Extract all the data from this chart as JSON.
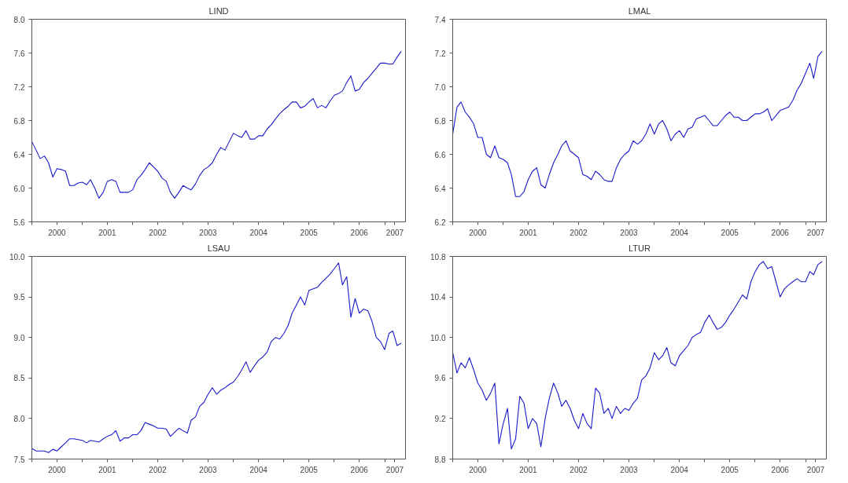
{
  "chart_data": [
    {
      "type": "line",
      "title": "LIND",
      "x": [
        "2000-01",
        "2000-02",
        "2000-03",
        "2000-04",
        "2000-05",
        "2000-06",
        "2000-07",
        "2000-08",
        "2000-09",
        "2000-10",
        "2000-11",
        "2000-12",
        "2001-01",
        "2001-02",
        "2001-03",
        "2001-04",
        "2001-05",
        "2001-06",
        "2001-07",
        "2001-08",
        "2001-09",
        "2001-10",
        "2001-11",
        "2001-12",
        "2002-01",
        "2002-02",
        "2002-03",
        "2002-04",
        "2002-05",
        "2002-06",
        "2002-07",
        "2002-08",
        "2002-09",
        "2002-10",
        "2002-11",
        "2002-12",
        "2003-01",
        "2003-02",
        "2003-03",
        "2003-04",
        "2003-05",
        "2003-06",
        "2003-07",
        "2003-08",
        "2003-09",
        "2003-10",
        "2003-11",
        "2003-12",
        "2004-01",
        "2004-02",
        "2004-03",
        "2004-04",
        "2004-05",
        "2004-06",
        "2004-07",
        "2004-08",
        "2004-09",
        "2004-10",
        "2004-11",
        "2004-12",
        "2005-01",
        "2005-02",
        "2005-03",
        "2005-04",
        "2005-05",
        "2005-06",
        "2005-07",
        "2005-08",
        "2005-09",
        "2005-10",
        "2005-11",
        "2005-12",
        "2006-01",
        "2006-02",
        "2006-03",
        "2006-04",
        "2006-05",
        "2006-06",
        "2006-07",
        "2006-08",
        "2006-09",
        "2006-10",
        "2006-11",
        "2006-12",
        "2007-01",
        "2007-02",
        "2007-03",
        "2007-04",
        "2007-05"
      ],
      "series": [
        {
          "color": "#1a1acc",
          "values": [
            6.55,
            6.45,
            6.35,
            6.38,
            6.3,
            6.13,
            6.23,
            6.22,
            6.2,
            6.03,
            6.03,
            6.06,
            6.07,
            6.04,
            6.1,
            6.0,
            5.88,
            5.95,
            6.08,
            6.1,
            6.08,
            5.95,
            5.95,
            5.95,
            5.98,
            6.1,
            6.15,
            6.22,
            6.3,
            6.25,
            6.2,
            6.12,
            6.08,
            5.95,
            5.88,
            5.95,
            6.03,
            6.0,
            5.98,
            6.05,
            6.15,
            6.22,
            6.25,
            6.3,
            6.4,
            6.48,
            6.45,
            6.55,
            6.65,
            6.62,
            6.6,
            6.68,
            6.58,
            6.58,
            6.62,
            6.62,
            6.7,
            6.75,
            6.82,
            6.88,
            6.93,
            6.97,
            7.02,
            7.02,
            6.95,
            6.97,
            7.02,
            7.06,
            6.95,
            6.98,
            6.95,
            7.03,
            7.1,
            7.12,
            7.15,
            7.25,
            7.33,
            7.15,
            7.17,
            7.25,
            7.3,
            7.36,
            7.42,
            7.48,
            7.48,
            7.47,
            7.47,
            7.55,
            7.62
          ]
        }
      ],
      "xlim": [
        "2000-01-01",
        "2007-06-01"
      ],
      "xticks": [
        {
          "value": "2000-01-01",
          "label": null
        },
        {
          "value": "2000-07-01",
          "label": "2000"
        },
        {
          "value": "2001-01-01",
          "label": null
        },
        {
          "value": "2001-07-01",
          "label": "2001"
        },
        {
          "value": "2002-01-01",
          "label": null
        },
        {
          "value": "2002-07-01",
          "label": "2002"
        },
        {
          "value": "2003-01-01",
          "label": null
        },
        {
          "value": "2003-07-01",
          "label": "2003"
        },
        {
          "value": "2004-01-01",
          "label": null
        },
        {
          "value": "2004-07-01",
          "label": "2004"
        },
        {
          "value": "2005-01-01",
          "label": null
        },
        {
          "value": "2005-07-01",
          "label": "2005"
        },
        {
          "value": "2006-01-01",
          "label": null
        },
        {
          "value": "2006-07-01",
          "label": "2006"
        },
        {
          "value": "2007-01-01",
          "label": null
        },
        {
          "value": "2007-03-16",
          "label": "2007"
        }
      ],
      "ylim": [
        5.6,
        8.0
      ],
      "yticks": [
        {
          "value": 5.6,
          "label": "5.6"
        },
        {
          "value": 6.0,
          "label": "6.0"
        },
        {
          "value": 6.4,
          "label": "6.4"
        },
        {
          "value": 6.8,
          "label": "6.8"
        },
        {
          "value": 7.2,
          "label": "7.2"
        },
        {
          "value": 7.6,
          "label": "7.6"
        },
        {
          "value": 8.0,
          "label": "8.0"
        }
      ],
      "grid": false,
      "line_style": "solid",
      "marker": "none"
    },
    {
      "type": "line",
      "title": "LMAL",
      "x": [
        "2000-01",
        "2000-02",
        "2000-03",
        "2000-04",
        "2000-05",
        "2000-06",
        "2000-07",
        "2000-08",
        "2000-09",
        "2000-10",
        "2000-11",
        "2000-12",
        "2001-01",
        "2001-02",
        "2001-03",
        "2001-04",
        "2001-05",
        "2001-06",
        "2001-07",
        "2001-08",
        "2001-09",
        "2001-10",
        "2001-11",
        "2001-12",
        "2002-01",
        "2002-02",
        "2002-03",
        "2002-04",
        "2002-05",
        "2002-06",
        "2002-07",
        "2002-08",
        "2002-09",
        "2002-10",
        "2002-11",
        "2002-12",
        "2003-01",
        "2003-02",
        "2003-03",
        "2003-04",
        "2003-05",
        "2003-06",
        "2003-07",
        "2003-08",
        "2003-09",
        "2003-10",
        "2003-11",
        "2003-12",
        "2004-01",
        "2004-02",
        "2004-03",
        "2004-04",
        "2004-05",
        "2004-06",
        "2004-07",
        "2004-08",
        "2004-09",
        "2004-10",
        "2004-11",
        "2004-12",
        "2005-01",
        "2005-02",
        "2005-03",
        "2005-04",
        "2005-05",
        "2005-06",
        "2005-07",
        "2005-08",
        "2005-09",
        "2005-10",
        "2005-11",
        "2005-12",
        "2006-01",
        "2006-02",
        "2006-03",
        "2006-04",
        "2006-05",
        "2006-06",
        "2006-07",
        "2006-08",
        "2006-09",
        "2006-10",
        "2006-11",
        "2006-12",
        "2007-01",
        "2007-02",
        "2007-03",
        "2007-04",
        "2007-05"
      ],
      "series": [
        {
          "color": "#1a1acc",
          "values": [
            6.72,
            6.88,
            6.91,
            6.85,
            6.82,
            6.78,
            6.7,
            6.7,
            6.6,
            6.58,
            6.65,
            6.58,
            6.57,
            6.55,
            6.48,
            6.35,
            6.35,
            6.38,
            6.45,
            6.5,
            6.52,
            6.42,
            6.4,
            6.48,
            6.55,
            6.6,
            6.65,
            6.68,
            6.62,
            6.6,
            6.58,
            6.48,
            6.47,
            6.45,
            6.5,
            6.48,
            6.45,
            6.44,
            6.44,
            6.52,
            6.57,
            6.6,
            6.62,
            6.68,
            6.66,
            6.68,
            6.72,
            6.78,
            6.72,
            6.78,
            6.8,
            6.75,
            6.68,
            6.72,
            6.74,
            6.7,
            6.75,
            6.76,
            6.81,
            6.82,
            6.83,
            6.8,
            6.77,
            6.77,
            6.8,
            6.83,
            6.85,
            6.82,
            6.82,
            6.8,
            6.8,
            6.82,
            6.84,
            6.84,
            6.85,
            6.87,
            6.8,
            6.83,
            6.86,
            6.87,
            6.88,
            6.92,
            6.98,
            7.02,
            7.08,
            7.14,
            7.05,
            7.18,
            7.21
          ]
        }
      ],
      "xlim": [
        "2000-01-01",
        "2007-06-01"
      ],
      "xticks": [
        {
          "value": "2000-01-01",
          "label": null
        },
        {
          "value": "2000-07-01",
          "label": "2000"
        },
        {
          "value": "2001-01-01",
          "label": null
        },
        {
          "value": "2001-07-01",
          "label": "2001"
        },
        {
          "value": "2002-01-01",
          "label": null
        },
        {
          "value": "2002-07-01",
          "label": "2002"
        },
        {
          "value": "2003-01-01",
          "label": null
        },
        {
          "value": "2003-07-01",
          "label": "2003"
        },
        {
          "value": "2004-01-01",
          "label": null
        },
        {
          "value": "2004-07-01",
          "label": "2004"
        },
        {
          "value": "2005-01-01",
          "label": null
        },
        {
          "value": "2005-07-01",
          "label": "2005"
        },
        {
          "value": "2006-01-01",
          "label": null
        },
        {
          "value": "2006-07-01",
          "label": "2006"
        },
        {
          "value": "2007-01-01",
          "label": null
        },
        {
          "value": "2007-03-16",
          "label": "2007"
        }
      ],
      "ylim": [
        6.2,
        7.4
      ],
      "yticks": [
        {
          "value": 6.2,
          "label": "6.2"
        },
        {
          "value": 6.4,
          "label": "6.4"
        },
        {
          "value": 6.6,
          "label": "6.6"
        },
        {
          "value": 6.8,
          "label": "6.8"
        },
        {
          "value": 7.0,
          "label": "7.0"
        },
        {
          "value": 7.2,
          "label": "7.2"
        },
        {
          "value": 7.4,
          "label": "7.4"
        }
      ],
      "grid": false,
      "line_style": "solid",
      "marker": "none"
    },
    {
      "type": "line",
      "title": "LSAU",
      "x": [
        "2000-01",
        "2000-02",
        "2000-03",
        "2000-04",
        "2000-05",
        "2000-06",
        "2000-07",
        "2000-08",
        "2000-09",
        "2000-10",
        "2000-11",
        "2000-12",
        "2001-01",
        "2001-02",
        "2001-03",
        "2001-04",
        "2001-05",
        "2001-06",
        "2001-07",
        "2001-08",
        "2001-09",
        "2001-10",
        "2001-11",
        "2001-12",
        "2002-01",
        "2002-02",
        "2002-03",
        "2002-04",
        "2002-05",
        "2002-06",
        "2002-07",
        "2002-08",
        "2002-09",
        "2002-10",
        "2002-11",
        "2002-12",
        "2003-01",
        "2003-02",
        "2003-03",
        "2003-04",
        "2003-05",
        "2003-06",
        "2003-07",
        "2003-08",
        "2003-09",
        "2003-10",
        "2003-11",
        "2003-12",
        "2004-01",
        "2004-02",
        "2004-03",
        "2004-04",
        "2004-05",
        "2004-06",
        "2004-07",
        "2004-08",
        "2004-09",
        "2004-10",
        "2004-11",
        "2004-12",
        "2005-01",
        "2005-02",
        "2005-03",
        "2005-04",
        "2005-05",
        "2005-06",
        "2005-07",
        "2005-08",
        "2005-09",
        "2005-10",
        "2005-11",
        "2005-12",
        "2006-01",
        "2006-02",
        "2006-03",
        "2006-04",
        "2006-05",
        "2006-06",
        "2006-07",
        "2006-08",
        "2006-09",
        "2006-10",
        "2006-11",
        "2006-12",
        "2007-01",
        "2007-02",
        "2007-03",
        "2007-04",
        "2007-05"
      ],
      "series": [
        {
          "color": "#1a1acc",
          "values": [
            7.63,
            7.6,
            7.6,
            7.6,
            7.58,
            7.62,
            7.6,
            7.65,
            7.7,
            7.75,
            7.75,
            7.74,
            7.73,
            7.7,
            7.73,
            7.72,
            7.71,
            7.75,
            7.78,
            7.8,
            7.85,
            7.72,
            7.76,
            7.76,
            7.8,
            7.8,
            7.85,
            7.95,
            7.93,
            7.91,
            7.88,
            7.88,
            7.87,
            7.78,
            7.83,
            7.88,
            7.85,
            7.82,
            7.98,
            8.02,
            8.15,
            8.2,
            8.3,
            8.38,
            8.3,
            8.35,
            8.38,
            8.42,
            8.45,
            8.52,
            8.6,
            8.7,
            8.57,
            8.65,
            8.72,
            8.76,
            8.82,
            8.95,
            9.0,
            8.98,
            9.05,
            9.15,
            9.3,
            9.4,
            9.5,
            9.4,
            9.58,
            9.6,
            9.62,
            9.68,
            9.73,
            9.78,
            9.85,
            9.92,
            9.65,
            9.75,
            9.25,
            9.48,
            9.3,
            9.35,
            9.33,
            9.2,
            9.0,
            8.95,
            8.85,
            9.05,
            9.08,
            8.9,
            8.93
          ]
        }
      ],
      "xlim": [
        "2000-01-01",
        "2007-06-01"
      ],
      "xticks": [
        {
          "value": "2000-01-01",
          "label": null
        },
        {
          "value": "2000-07-01",
          "label": "2000"
        },
        {
          "value": "2001-01-01",
          "label": null
        },
        {
          "value": "2001-07-01",
          "label": "2001"
        },
        {
          "value": "2002-01-01",
          "label": null
        },
        {
          "value": "2002-07-01",
          "label": "2002"
        },
        {
          "value": "2003-01-01",
          "label": null
        },
        {
          "value": "2003-07-01",
          "label": "2003"
        },
        {
          "value": "2004-01-01",
          "label": null
        },
        {
          "value": "2004-07-01",
          "label": "2004"
        },
        {
          "value": "2005-01-01",
          "label": null
        },
        {
          "value": "2005-07-01",
          "label": "2005"
        },
        {
          "value": "2006-01-01",
          "label": null
        },
        {
          "value": "2006-07-01",
          "label": "2006"
        },
        {
          "value": "2007-01-01",
          "label": null
        },
        {
          "value": "2007-03-16",
          "label": "2007"
        }
      ],
      "ylim": [
        7.5,
        10.0
      ],
      "yticks": [
        {
          "value": 7.5,
          "label": "7.5"
        },
        {
          "value": 8.0,
          "label": "8.0"
        },
        {
          "value": 8.5,
          "label": "8.5"
        },
        {
          "value": 9.0,
          "label": "9.0"
        },
        {
          "value": 9.5,
          "label": "9.5"
        },
        {
          "value": 10.0,
          "label": "10.0"
        }
      ],
      "grid": false,
      "line_style": "solid",
      "marker": "none"
    },
    {
      "type": "line",
      "title": "LTUR",
      "x": [
        "2000-01",
        "2000-02",
        "2000-03",
        "2000-04",
        "2000-05",
        "2000-06",
        "2000-07",
        "2000-08",
        "2000-09",
        "2000-10",
        "2000-11",
        "2000-12",
        "2001-01",
        "2001-02",
        "2001-03",
        "2001-04",
        "2001-05",
        "2001-06",
        "2001-07",
        "2001-08",
        "2001-09",
        "2001-10",
        "2001-11",
        "2001-12",
        "2002-01",
        "2002-02",
        "2002-03",
        "2002-04",
        "2002-05",
        "2002-06",
        "2002-07",
        "2002-08",
        "2002-09",
        "2002-10",
        "2002-11",
        "2002-12",
        "2003-01",
        "2003-02",
        "2003-03",
        "2003-04",
        "2003-05",
        "2003-06",
        "2003-07",
        "2003-08",
        "2003-09",
        "2003-10",
        "2003-11",
        "2003-12",
        "2004-01",
        "2004-02",
        "2004-03",
        "2004-04",
        "2004-05",
        "2004-06",
        "2004-07",
        "2004-08",
        "2004-09",
        "2004-10",
        "2004-11",
        "2004-12",
        "2005-01",
        "2005-02",
        "2005-03",
        "2005-04",
        "2005-05",
        "2005-06",
        "2005-07",
        "2005-08",
        "2005-09",
        "2005-10",
        "2005-11",
        "2005-12",
        "2006-01",
        "2006-02",
        "2006-03",
        "2006-04",
        "2006-05",
        "2006-06",
        "2006-07",
        "2006-08",
        "2006-09",
        "2006-10",
        "2006-11",
        "2006-12",
        "2007-01",
        "2007-02",
        "2007-03",
        "2007-04",
        "2007-05"
      ],
      "series": [
        {
          "color": "#1a1acc",
          "values": [
            9.85,
            9.65,
            9.75,
            9.7,
            9.8,
            9.68,
            9.55,
            9.48,
            9.38,
            9.45,
            9.55,
            8.95,
            9.15,
            9.3,
            8.9,
            9.0,
            9.42,
            9.35,
            9.1,
            9.2,
            9.15,
            8.92,
            9.2,
            9.4,
            9.55,
            9.45,
            9.32,
            9.38,
            9.3,
            9.18,
            9.1,
            9.25,
            9.15,
            9.1,
            9.5,
            9.45,
            9.25,
            9.3,
            9.2,
            9.32,
            9.25,
            9.3,
            9.28,
            9.35,
            9.4,
            9.58,
            9.62,
            9.7,
            9.85,
            9.78,
            9.82,
            9.9,
            9.75,
            9.72,
            9.82,
            9.87,
            9.92,
            10.0,
            10.03,
            10.05,
            10.15,
            10.22,
            10.15,
            10.08,
            10.1,
            10.15,
            10.22,
            10.28,
            10.35,
            10.42,
            10.38,
            10.55,
            10.65,
            10.72,
            10.75,
            10.68,
            10.7,
            10.55,
            10.4,
            10.48,
            10.52,
            10.55,
            10.58,
            10.55,
            10.55,
            10.65,
            10.62,
            10.72,
            10.75
          ]
        }
      ],
      "xlim": [
        "2000-01-01",
        "2007-06-01"
      ],
      "xticks": [
        {
          "value": "2000-01-01",
          "label": null
        },
        {
          "value": "2000-07-01",
          "label": "2000"
        },
        {
          "value": "2001-01-01",
          "label": null
        },
        {
          "value": "2001-07-01",
          "label": "2001"
        },
        {
          "value": "2002-01-01",
          "label": null
        },
        {
          "value": "2002-07-01",
          "label": "2002"
        },
        {
          "value": "2003-01-01",
          "label": null
        },
        {
          "value": "2003-07-01",
          "label": "2003"
        },
        {
          "value": "2004-01-01",
          "label": null
        },
        {
          "value": "2004-07-01",
          "label": "2004"
        },
        {
          "value": "2005-01-01",
          "label": null
        },
        {
          "value": "2005-07-01",
          "label": "2005"
        },
        {
          "value": "2006-01-01",
          "label": null
        },
        {
          "value": "2006-07-01",
          "label": "2006"
        },
        {
          "value": "2007-01-01",
          "label": null
        },
        {
          "value": "2007-03-16",
          "label": "2007"
        }
      ],
      "ylim": [
        8.8,
        10.8
      ],
      "yticks": [
        {
          "value": 8.8,
          "label": "8.8"
        },
        {
          "value": 9.2,
          "label": "9.2"
        },
        {
          "value": 9.6,
          "label": "9.6"
        },
        {
          "value": 10.0,
          "label": "10.0"
        },
        {
          "value": 10.4,
          "label": "10.4"
        },
        {
          "value": 10.8,
          "label": "10.8"
        }
      ],
      "grid": false,
      "line_style": "solid",
      "marker": "none"
    }
  ]
}
